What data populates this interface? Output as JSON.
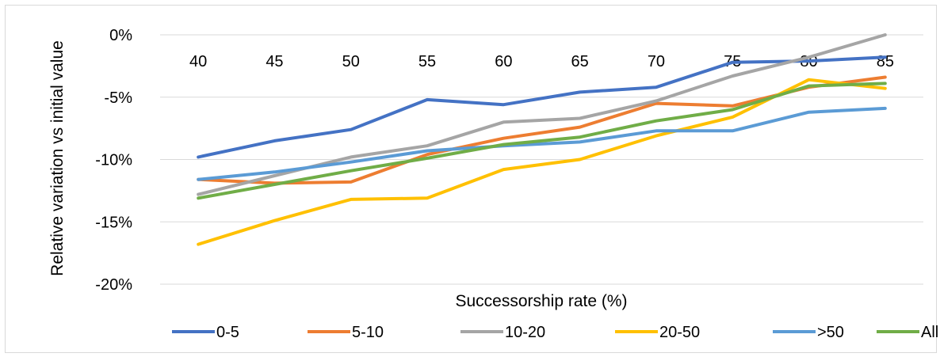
{
  "chart_data": {
    "type": "line",
    "title": "",
    "xlabel": "Successorship rate (%)",
    "ylabel": "Relative variation vs initial value",
    "categories": [
      "40",
      "45",
      "50",
      "55",
      "60",
      "65",
      "70",
      "75",
      "80",
      "85"
    ],
    "y_ticks": [
      "0%",
      "-5%",
      "-10%",
      "-15%",
      "-20%"
    ],
    "ylim": [
      -20,
      0
    ],
    "grid": true,
    "legend_position": "bottom",
    "series": [
      {
        "name": "0-5",
        "color": "#4472C4",
        "values": [
          -9.8,
          -8.5,
          -7.6,
          -5.2,
          -5.6,
          -4.6,
          -4.2,
          -2.2,
          -2.1,
          -1.8
        ]
      },
      {
        "name": "5-10",
        "color": "#ED7D31",
        "values": [
          -11.6,
          -11.9,
          -11.8,
          -9.6,
          -8.3,
          -7.4,
          -5.5,
          -5.7,
          -4.2,
          -3.4
        ]
      },
      {
        "name": "10-20",
        "color": "#A5A5A5",
        "values": [
          -12.8,
          -11.3,
          -9.8,
          -8.9,
          -7.0,
          -6.7,
          -5.3,
          -3.3,
          -1.8,
          0.0
        ]
      },
      {
        "name": "20-50",
        "color": "#FFC000",
        "values": [
          -16.8,
          -14.9,
          -13.2,
          -13.1,
          -10.8,
          -10.0,
          -8.1,
          -6.6,
          -3.6,
          -4.3
        ]
      },
      {
        "name": ">50",
        "color": "#5B9BD5",
        "values": [
          -11.6,
          -11.0,
          -10.2,
          -9.3,
          -8.9,
          -8.6,
          -7.7,
          -7.7,
          -6.2,
          -5.9
        ]
      },
      {
        "name": "All",
        "color": "#70AD47",
        "values": [
          -13.1,
          -12.0,
          -10.9,
          -9.9,
          -8.8,
          -8.2,
          -6.9,
          -6.0,
          -4.1,
          -3.9
        ]
      }
    ]
  }
}
